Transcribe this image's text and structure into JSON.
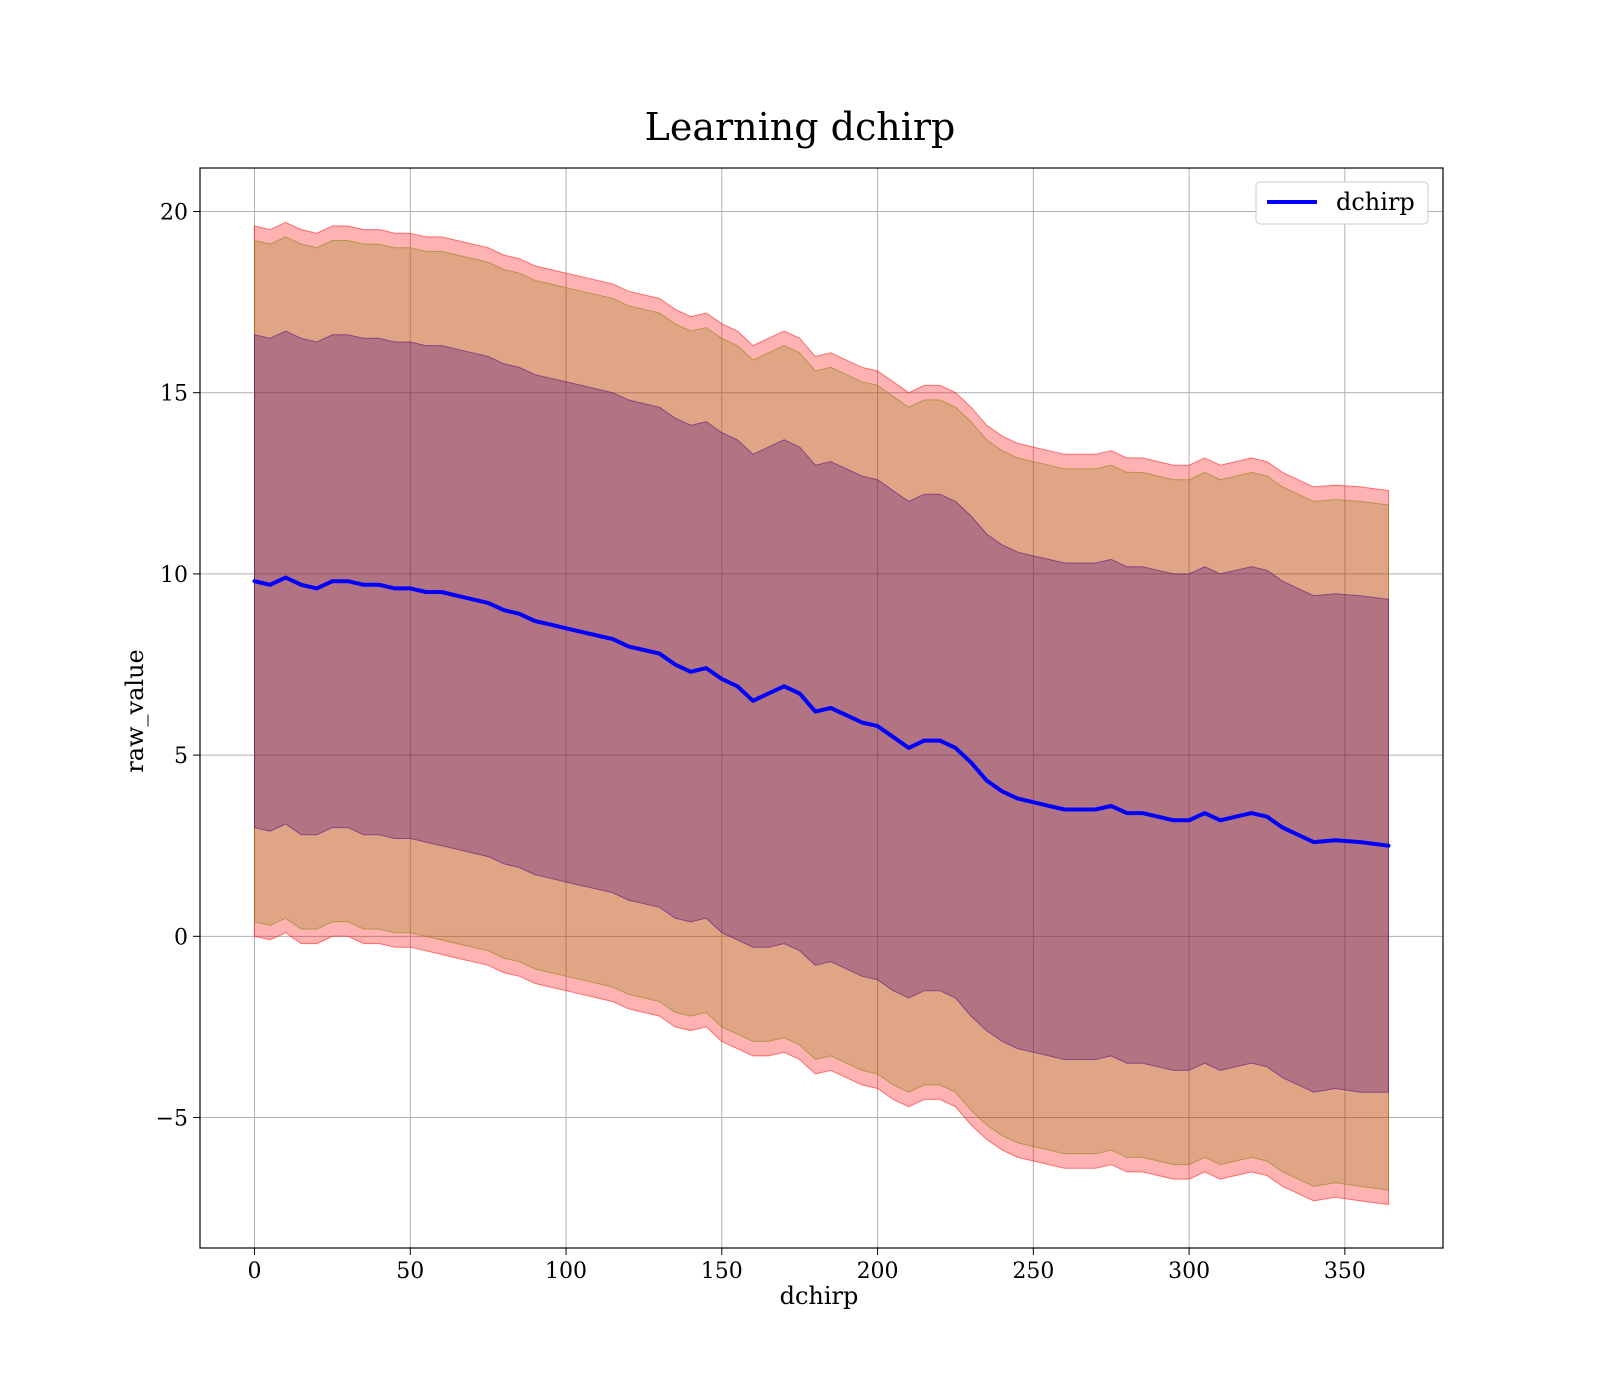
{
  "chart_data": {
    "type": "line",
    "title": "Learning dchirp",
    "xlabel": "dchirp",
    "ylabel": "raw_value",
    "xlim": [
      -17.5,
      381.5
    ],
    "ylim": [
      -8.6,
      21.2
    ],
    "xticks": [
      0,
      50,
      100,
      150,
      200,
      250,
      300,
      350
    ],
    "xtick_labels": [
      "0",
      "50",
      "100",
      "150",
      "200",
      "250",
      "300",
      "350"
    ],
    "yticks": [
      -5,
      0,
      5,
      10,
      15,
      20
    ],
    "ytick_labels": [
      "−5",
      "0",
      "5",
      "10",
      "15",
      "20"
    ],
    "grid": true,
    "legend_position": "upper right",
    "legend": [
      {
        "label": "dchirp",
        "color": "#0000ff"
      }
    ],
    "series": [
      {
        "name": "dchirp",
        "color": "#0000ff",
        "x": [
          0,
          5,
          10,
          15,
          20,
          25,
          30,
          35,
          40,
          45,
          50,
          55,
          60,
          65,
          70,
          75,
          80,
          85,
          90,
          95,
          100,
          105,
          110,
          115,
          120,
          125,
          130,
          135,
          140,
          145,
          150,
          155,
          160,
          165,
          170,
          175,
          180,
          185,
          190,
          195,
          200,
          205,
          210,
          215,
          220,
          225,
          230,
          235,
          240,
          245,
          250,
          255,
          260,
          265,
          270,
          275,
          280,
          285,
          290,
          295,
          300,
          305,
          310,
          315,
          320,
          325,
          330,
          335,
          340,
          347,
          355,
          364
        ],
        "values": [
          9.8,
          9.7,
          9.9,
          9.7,
          9.6,
          9.8,
          9.8,
          9.7,
          9.7,
          9.6,
          9.6,
          9.5,
          9.5,
          9.4,
          9.3,
          9.2,
          9.0,
          8.9,
          8.7,
          8.6,
          8.5,
          8.4,
          8.3,
          8.2,
          8.0,
          7.9,
          7.8,
          7.5,
          7.3,
          7.4,
          7.1,
          6.9,
          6.5,
          6.7,
          6.9,
          6.7,
          6.2,
          6.3,
          6.1,
          5.9,
          5.8,
          5.5,
          5.2,
          5.4,
          5.4,
          5.2,
          4.8,
          4.3,
          4.0,
          3.8,
          3.7,
          3.6,
          3.5,
          3.5,
          3.5,
          3.6,
          3.4,
          3.4,
          3.3,
          3.2,
          3.2,
          3.4,
          3.2,
          3.3,
          3.4,
          3.3,
          3.0,
          2.8,
          2.6,
          2.65,
          2.6,
          2.5
        ]
      }
    ],
    "bands": [
      {
        "name": "outer",
        "color": "#ff0000",
        "opacity": 0.3,
        "x": [
          0,
          5,
          10,
          15,
          20,
          25,
          30,
          35,
          40,
          45,
          50,
          55,
          60,
          65,
          70,
          75,
          80,
          85,
          90,
          95,
          100,
          105,
          110,
          115,
          120,
          125,
          130,
          135,
          140,
          145,
          150,
          155,
          160,
          165,
          170,
          175,
          180,
          185,
          190,
          195,
          200,
          205,
          210,
          215,
          220,
          225,
          230,
          235,
          240,
          245,
          250,
          255,
          260,
          265,
          270,
          275,
          280,
          285,
          290,
          295,
          300,
          305,
          310,
          315,
          320,
          325,
          330,
          335,
          340,
          347,
          355,
          364
        ],
        "lower": [
          0.0,
          -0.1,
          0.1,
          -0.2,
          -0.2,
          0.0,
          0.0,
          -0.2,
          -0.2,
          -0.3,
          -0.3,
          -0.4,
          -0.5,
          -0.6,
          -0.7,
          -0.8,
          -1.0,
          -1.1,
          -1.3,
          -1.4,
          -1.5,
          -1.6,
          -1.7,
          -1.8,
          -2.0,
          -2.1,
          -2.2,
          -2.5,
          -2.6,
          -2.5,
          -2.9,
          -3.1,
          -3.3,
          -3.3,
          -3.2,
          -3.4,
          -3.8,
          -3.7,
          -3.9,
          -4.1,
          -4.2,
          -4.5,
          -4.7,
          -4.5,
          -4.5,
          -4.7,
          -5.2,
          -5.6,
          -5.9,
          -6.1,
          -6.2,
          -6.3,
          -6.4,
          -6.4,
          -6.4,
          -6.3,
          -6.5,
          -6.5,
          -6.6,
          -6.7,
          -6.7,
          -6.5,
          -6.7,
          -6.6,
          -6.5,
          -6.6,
          -6.9,
          -7.1,
          -7.3,
          -7.2,
          -7.3,
          -7.4
        ],
        "upper": [
          19.6,
          19.5,
          19.7,
          19.5,
          19.4,
          19.6,
          19.6,
          19.5,
          19.5,
          19.4,
          19.4,
          19.3,
          19.3,
          19.2,
          19.1,
          19.0,
          18.8,
          18.7,
          18.5,
          18.4,
          18.3,
          18.2,
          18.1,
          18.0,
          17.8,
          17.7,
          17.6,
          17.3,
          17.1,
          17.2,
          16.9,
          16.7,
          16.3,
          16.5,
          16.7,
          16.5,
          16.0,
          16.1,
          15.9,
          15.7,
          15.6,
          15.3,
          15.0,
          15.2,
          15.2,
          15.0,
          14.6,
          14.1,
          13.8,
          13.6,
          13.5,
          13.4,
          13.3,
          13.3,
          13.3,
          13.4,
          13.2,
          13.2,
          13.1,
          13.0,
          13.0,
          13.2,
          13.0,
          13.1,
          13.2,
          13.1,
          12.8,
          12.6,
          12.4,
          12.45,
          12.4,
          12.3
        ]
      },
      {
        "name": "mid",
        "color": "#7f7f00",
        "opacity": 0.25,
        "x": [
          0,
          5,
          10,
          15,
          20,
          25,
          30,
          35,
          40,
          45,
          50,
          55,
          60,
          65,
          70,
          75,
          80,
          85,
          90,
          95,
          100,
          105,
          110,
          115,
          120,
          125,
          130,
          135,
          140,
          145,
          150,
          155,
          160,
          165,
          170,
          175,
          180,
          185,
          190,
          195,
          200,
          205,
          210,
          215,
          220,
          225,
          230,
          235,
          240,
          245,
          250,
          255,
          260,
          265,
          270,
          275,
          280,
          285,
          290,
          295,
          300,
          305,
          310,
          315,
          320,
          325,
          330,
          335,
          340,
          347,
          355,
          364
        ],
        "lower": [
          0.4,
          0.3,
          0.5,
          0.2,
          0.2,
          0.4,
          0.4,
          0.2,
          0.2,
          0.1,
          0.1,
          0.0,
          -0.1,
          -0.2,
          -0.3,
          -0.4,
          -0.6,
          -0.7,
          -0.9,
          -1.0,
          -1.1,
          -1.2,
          -1.3,
          -1.4,
          -1.6,
          -1.7,
          -1.8,
          -2.1,
          -2.2,
          -2.1,
          -2.5,
          -2.7,
          -2.9,
          -2.9,
          -2.8,
          -3.0,
          -3.4,
          -3.3,
          -3.5,
          -3.7,
          -3.8,
          -4.1,
          -4.3,
          -4.1,
          -4.1,
          -4.3,
          -4.8,
          -5.2,
          -5.5,
          -5.7,
          -5.8,
          -5.9,
          -6.0,
          -6.0,
          -6.0,
          -5.9,
          -6.1,
          -6.1,
          -6.2,
          -6.3,
          -6.3,
          -6.1,
          -6.3,
          -6.2,
          -6.1,
          -6.2,
          -6.5,
          -6.7,
          -6.9,
          -6.8,
          -6.9,
          -7.0
        ],
        "upper": [
          19.2,
          19.1,
          19.3,
          19.1,
          19.0,
          19.2,
          19.2,
          19.1,
          19.1,
          19.0,
          19.0,
          18.9,
          18.9,
          18.8,
          18.7,
          18.6,
          18.4,
          18.3,
          18.1,
          18.0,
          17.9,
          17.8,
          17.7,
          17.6,
          17.4,
          17.3,
          17.2,
          16.9,
          16.7,
          16.8,
          16.5,
          16.3,
          15.9,
          16.1,
          16.3,
          16.1,
          15.6,
          15.7,
          15.5,
          15.3,
          15.2,
          14.9,
          14.6,
          14.8,
          14.8,
          14.6,
          14.2,
          13.7,
          13.4,
          13.2,
          13.1,
          13.0,
          12.9,
          12.9,
          12.9,
          13.0,
          12.8,
          12.8,
          12.7,
          12.6,
          12.6,
          12.8,
          12.6,
          12.7,
          12.8,
          12.7,
          12.4,
          12.2,
          12.0,
          12.05,
          12.0,
          11.9
        ]
      },
      {
        "name": "inner",
        "color": "#4b0082",
        "opacity": 0.3,
        "x": [
          0,
          5,
          10,
          15,
          20,
          25,
          30,
          35,
          40,
          45,
          50,
          55,
          60,
          65,
          70,
          75,
          80,
          85,
          90,
          95,
          100,
          105,
          110,
          115,
          120,
          125,
          130,
          135,
          140,
          145,
          150,
          155,
          160,
          165,
          170,
          175,
          180,
          185,
          190,
          195,
          200,
          205,
          210,
          215,
          220,
          225,
          230,
          235,
          240,
          245,
          250,
          255,
          260,
          265,
          270,
          275,
          280,
          285,
          290,
          295,
          300,
          305,
          310,
          315,
          320,
          325,
          330,
          335,
          340,
          347,
          355,
          364
        ],
        "lower": [
          3.0,
          2.9,
          3.1,
          2.8,
          2.8,
          3.0,
          3.0,
          2.8,
          2.8,
          2.7,
          2.7,
          2.6,
          2.5,
          2.4,
          2.3,
          2.2,
          2.0,
          1.9,
          1.7,
          1.6,
          1.5,
          1.4,
          1.3,
          1.2,
          1.0,
          0.9,
          0.8,
          0.5,
          0.4,
          0.5,
          0.1,
          -0.1,
          -0.3,
          -0.3,
          -0.2,
          -0.4,
          -0.8,
          -0.7,
          -0.9,
          -1.1,
          -1.2,
          -1.5,
          -1.7,
          -1.5,
          -1.5,
          -1.7,
          -2.2,
          -2.6,
          -2.9,
          -3.1,
          -3.2,
          -3.3,
          -3.4,
          -3.4,
          -3.4,
          -3.3,
          -3.5,
          -3.5,
          -3.6,
          -3.7,
          -3.7,
          -3.5,
          -3.7,
          -3.6,
          -3.5,
          -3.6,
          -3.9,
          -4.1,
          -4.3,
          -4.2,
          -4.3,
          -4.3
        ],
        "upper": [
          16.6,
          16.5,
          16.7,
          16.5,
          16.4,
          16.6,
          16.6,
          16.5,
          16.5,
          16.4,
          16.4,
          16.3,
          16.3,
          16.2,
          16.1,
          16.0,
          15.8,
          15.7,
          15.5,
          15.4,
          15.3,
          15.2,
          15.1,
          15.0,
          14.8,
          14.7,
          14.6,
          14.3,
          14.1,
          14.2,
          13.9,
          13.7,
          13.3,
          13.5,
          13.7,
          13.5,
          13.0,
          13.1,
          12.9,
          12.7,
          12.6,
          12.3,
          12.0,
          12.2,
          12.2,
          12.0,
          11.6,
          11.1,
          10.8,
          10.6,
          10.5,
          10.4,
          10.3,
          10.3,
          10.3,
          10.4,
          10.2,
          10.2,
          10.1,
          10.0,
          10.0,
          10.2,
          10.0,
          10.1,
          10.2,
          10.1,
          9.8,
          9.6,
          9.4,
          9.45,
          9.4,
          9.3
        ]
      }
    ]
  }
}
